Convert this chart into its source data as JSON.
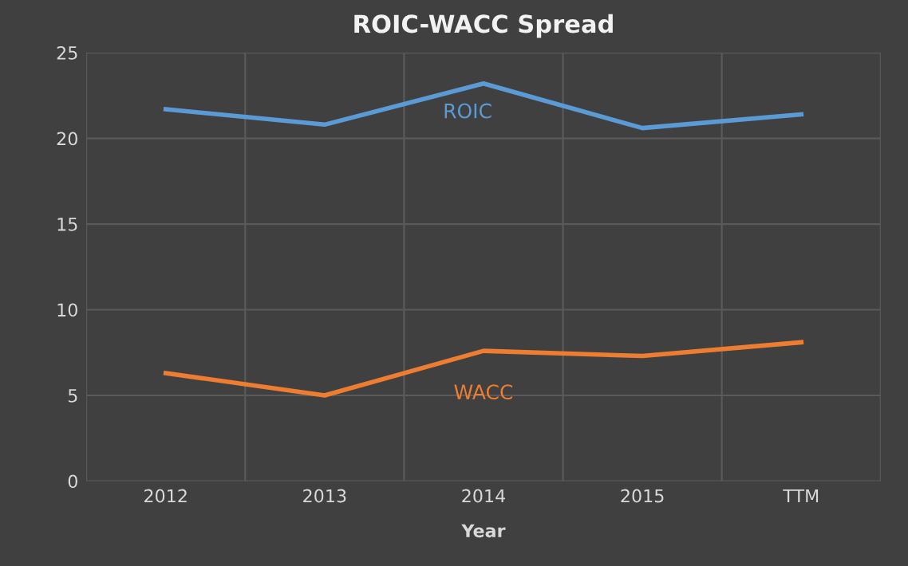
{
  "chart_data": {
    "type": "line",
    "title": "ROIC-WACC Spread",
    "xlabel": "Year",
    "categories": [
      "2012",
      "2013",
      "2014",
      "2015",
      "TTM"
    ],
    "series": [
      {
        "name": "ROIC",
        "color": "#5b9bd5",
        "values": [
          21.7,
          20.8,
          23.2,
          20.6,
          21.4
        ]
      },
      {
        "name": "WACC",
        "color": "#ed7d31",
        "values": [
          6.3,
          5.0,
          7.6,
          7.3,
          8.1
        ]
      }
    ],
    "ylim": [
      0,
      25
    ],
    "yticks": [
      0,
      5,
      10,
      15,
      20,
      25
    ],
    "grid": true,
    "legend": false,
    "line_style": "solid"
  }
}
